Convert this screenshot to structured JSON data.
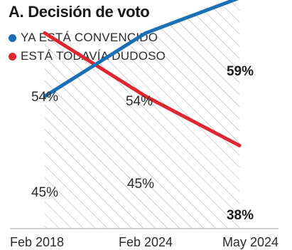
{
  "chart_data": {
    "type": "line",
    "title": "A. Decisión de voto",
    "categories": [
      "Feb 2018",
      "Feb 2024",
      "May 2024"
    ],
    "ylim": [
      0,
      100
    ],
    "grid": false,
    "legend_position": "top-left",
    "hatched_area_between_series": true,
    "series": [
      {
        "name": "YA ESTÁ CONVENCIDO",
        "color": "#1a6fb5",
        "values": [
          45,
          54,
          59
        ],
        "labels": [
          "45%",
          "54%",
          "59%"
        ]
      },
      {
        "name": "ESTÁ TODAVÍA DUDOSO",
        "color": "#e0262e",
        "values": [
          54,
          45,
          38
        ],
        "labels": [
          "54%",
          "45%",
          "38%"
        ]
      }
    ]
  }
}
